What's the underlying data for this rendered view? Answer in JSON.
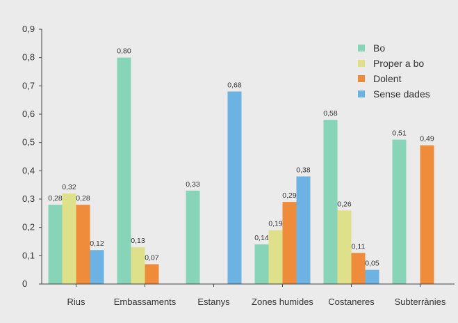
{
  "chart_data": {
    "type": "bar",
    "categories": [
      "Rius",
      "Embassaments",
      "Estanys",
      "Zones humides",
      "Costaneres",
      "Subterrànies"
    ],
    "series": [
      {
        "name": "Bo",
        "color": "#88d4b8",
        "values": [
          0.28,
          0.8,
          0.33,
          0.14,
          0.58,
          0.51
        ],
        "labels": [
          "0,28",
          "0,80",
          "0,33",
          "0,14",
          "0,58",
          "0,51"
        ]
      },
      {
        "name": "Proper a bo",
        "color": "#dfe08a",
        "values": [
          0.32,
          0.13,
          null,
          0.19,
          0.26,
          null
        ],
        "labels": [
          "0,32",
          "0,13",
          "",
          "0,19",
          "0,26",
          ""
        ]
      },
      {
        "name": "Dolent",
        "color": "#ef8c3c",
        "values": [
          0.28,
          0.07,
          null,
          0.29,
          0.11,
          0.49
        ],
        "labels": [
          "0,28",
          "0,07",
          "",
          "0,29",
          "0,11",
          "0,49"
        ]
      },
      {
        "name": "Sense dades",
        "color": "#6cb2e2",
        "values": [
          0.12,
          null,
          0.68,
          0.38,
          0.05,
          null
        ],
        "labels": [
          "0,12",
          "",
          "0,68",
          "0,38",
          "0,05",
          ""
        ]
      }
    ],
    "ylim": [
      0,
      0.9
    ],
    "yticks": [
      0,
      0.1,
      0.2,
      0.3,
      0.4,
      0.5,
      0.6,
      0.7,
      0.8,
      0.9
    ],
    "ytick_labels": [
      "0",
      "0,1",
      "0,2",
      "0,3",
      "0,4",
      "0,5",
      "0,6",
      "0,7",
      "0,8",
      "0,9"
    ],
    "legend_position": "top-right",
    "grid": false
  }
}
